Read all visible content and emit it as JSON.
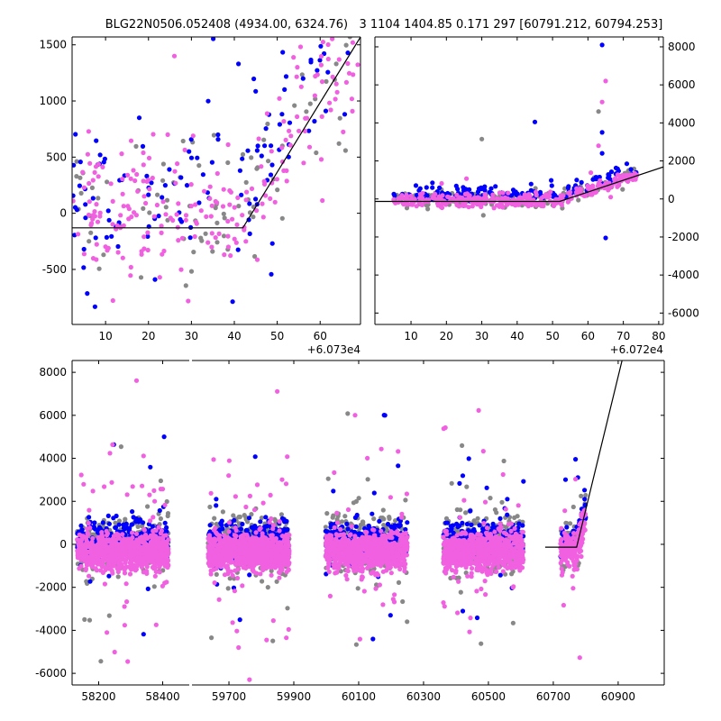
{
  "title": "BLG22N0506.052408 (4934.00, 6324.76)   3 1104 1404.85 0.171 297 [60791.212, 60794.253]",
  "colors": {
    "pink": "#f060e0",
    "blue": "#0000ff",
    "gray": "#888888",
    "model_line": "#000000"
  },
  "chart_data": [
    {
      "panel": "top-left",
      "type": "scatter",
      "xlim": [
        2.2,
        69.4
      ],
      "x_offset": 60730,
      "x_offset_label": "+6.073e4",
      "ylim": [
        -990,
        1570
      ],
      "xticks": [
        10,
        20,
        30,
        40,
        50,
        60
      ],
      "yticks": [
        -500,
        0,
        500,
        1000,
        1500
      ],
      "ytick_side": "left",
      "model": {
        "type": "flat-then-linear",
        "t0": 60772,
        "baseline": -130,
        "slope_per_day": 62
      },
      "seasons": [
        {
          "range": [
            60732,
            60799
          ],
          "n": {
            "gray": 90,
            "blue": 130,
            "pink": 230
          }
        }
      ],
      "noise": {
        "gray": {
          "mean": 0,
          "sd": 330
        },
        "blue": {
          "mean": 150,
          "sd": 380
        },
        "pink": {
          "mean": -20,
          "sd": 330
        },
        "outlier_frac": 0.04,
        "outlier_sd": 900
      },
      "extra_points": []
    },
    {
      "panel": "top-right",
      "type": "scatter",
      "xlim": [
        -0.2,
        81.3
      ],
      "x_offset": 60720,
      "x_offset_label": "+6.072e4",
      "ylim": [
        -6600,
        8520
      ],
      "xticks": [
        10,
        20,
        30,
        40,
        50,
        60,
        70,
        80
      ],
      "yticks": [
        -6000,
        -4000,
        -2000,
        0,
        2000,
        4000,
        6000,
        8000
      ],
      "ytick_side": "right",
      "model": {
        "type": "flat-then-linear",
        "t0": 60772,
        "baseline": -130,
        "slope_per_day": 62
      },
      "seasons": [
        {
          "range": [
            60725,
            60794
          ],
          "n": {
            "gray": 180,
            "blue": 160,
            "pink": 320
          }
        }
      ],
      "noise": {
        "gray": {
          "mean": 0,
          "sd": 220
        },
        "blue": {
          "mean": 250,
          "sd": 200
        },
        "pink": {
          "mean": -100,
          "sd": 180
        },
        "outlier_frac": 0.02,
        "outlier_sd": 900
      },
      "extra_points": [
        {
          "t": 60784,
          "flux": 8100,
          "color": "blue"
        },
        {
          "t": 60785,
          "flux": 6200,
          "color": "pink"
        },
        {
          "t": 60784,
          "flux": 5100,
          "color": "pink"
        },
        {
          "t": 60783,
          "flux": 4600,
          "color": "gray"
        },
        {
          "t": 60765,
          "flux": 4050,
          "color": "blue"
        },
        {
          "t": 60750,
          "flux": 3150,
          "color": "gray"
        },
        {
          "t": 60784,
          "flux": 3500,
          "color": "blue"
        },
        {
          "t": 60785,
          "flux": -2050,
          "color": "blue"
        },
        {
          "t": 60783,
          "flux": 2800,
          "color": "pink"
        },
        {
          "t": 60784,
          "flux": 2400,
          "color": "blue"
        }
      ]
    },
    {
      "panel": "bottom",
      "type": "scatter",
      "broken_x_axis": true,
      "axes": [
        {
          "xlim": [
            58117,
            58483
          ],
          "xticks": [
            58200,
            58400
          ]
        },
        {
          "xlim": [
            59586,
            61042
          ],
          "xticks": [
            59700,
            59900,
            60100,
            60300,
            60500,
            60700,
            60900
          ]
        }
      ],
      "ylim": [
        -6540,
        8550
      ],
      "yticks": [
        -6000,
        -4000,
        -2000,
        0,
        2000,
        4000,
        6000,
        8000
      ],
      "ytick_side": "left",
      "model": {
        "type": "flat-then-linear",
        "t0": 60772,
        "baseline": -130,
        "slope_per_day": 62,
        "line_start": 60675
      },
      "seasons": [
        {
          "range": [
            58133,
            58418
          ],
          "n": {
            "gray": 260,
            "blue": 320,
            "pink": 800
          }
        },
        {
          "range": [
            59636,
            59886
          ],
          "n": {
            "gray": 260,
            "blue": 320,
            "pink": 800
          }
        },
        {
          "range": [
            59997,
            60250
          ],
          "n": {
            "gray": 260,
            "blue": 320,
            "pink": 800
          }
        },
        {
          "range": [
            60361,
            60608
          ],
          "n": {
            "gray": 240,
            "blue": 300,
            "pink": 750
          }
        },
        {
          "range": [
            60722,
            60800
          ],
          "n": {
            "gray": 40,
            "blue": 70,
            "pink": 170
          }
        }
      ],
      "noise": {
        "gray": {
          "mean": 100,
          "sd": 650
        },
        "blue": {
          "mean": 150,
          "sd": 450
        },
        "pink": {
          "mean": -350,
          "sd": 430
        },
        "outlier_frac": 0.05,
        "outlier_sd": 2600
      },
      "extra_points": []
    }
  ]
}
